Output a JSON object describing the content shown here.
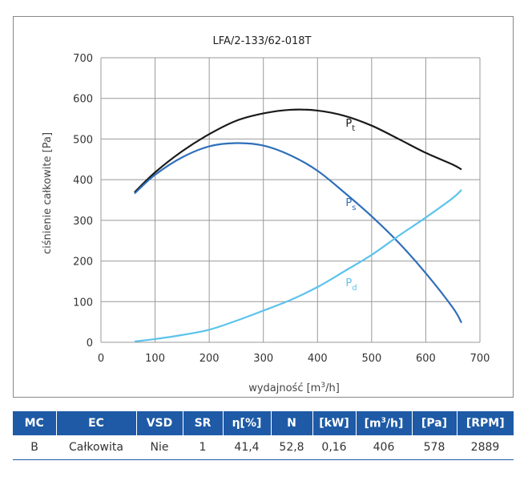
{
  "chart_data": {
    "type": "line",
    "title": "LFA/2-133/62-018T",
    "xlabel": "wydajność [m³/h]",
    "ylabel": "ciśnienie całkowite [Pa]",
    "xlim": [
      0,
      700
    ],
    "ylim": [
      0,
      700
    ],
    "xticks": [
      "0",
      "100",
      "200",
      "300",
      "400",
      "500",
      "600",
      "700"
    ],
    "yticks": [
      "0",
      "100",
      "200",
      "300",
      "400",
      "500",
      "600",
      "700"
    ],
    "grid": true,
    "series": [
      {
        "name": "Pt",
        "label_main": "P",
        "label_sub": "t",
        "label_at": [
          452,
          530
        ],
        "color": "#1a1a1a",
        "x": [
          62,
          100,
          150,
          200,
          250,
          300,
          350,
          400,
          450,
          500,
          550,
          600,
          650,
          666
        ],
        "y": [
          369,
          418,
          470,
          512,
          545,
          563,
          572,
          570,
          557,
          533,
          500,
          466,
          437,
          425
        ]
      },
      {
        "name": "Ps",
        "label_main": "P",
        "label_sub": "s",
        "label_at": [
          452,
          335
        ],
        "color": "#2f6fba",
        "x": [
          62,
          100,
          150,
          200,
          250,
          300,
          350,
          400,
          450,
          500,
          550,
          600,
          650,
          666
        ],
        "y": [
          366,
          412,
          455,
          482,
          490,
          484,
          460,
          422,
          368,
          310,
          245,
          170,
          85,
          48
        ]
      },
      {
        "name": "Pd",
        "label_main": "P",
        "label_sub": "d",
        "label_at": [
          452,
          138
        ],
        "color": "#5cc3ec",
        "x": [
          62,
          100,
          150,
          200,
          250,
          300,
          350,
          400,
          450,
          500,
          550,
          600,
          650,
          666
        ],
        "y": [
          2,
          8,
          18,
          31,
          53,
          78,
          104,
          136,
          175,
          215,
          262,
          307,
          355,
          375
        ]
      }
    ]
  },
  "table": {
    "headers": [
      {
        "main": "MC",
        "sup": "",
        "tail": ""
      },
      {
        "main": "EC",
        "sup": "",
        "tail": ""
      },
      {
        "main": "VSD",
        "sup": "",
        "tail": ""
      },
      {
        "main": "SR",
        "sup": "",
        "tail": ""
      },
      {
        "main": "η[%]",
        "sup": "",
        "tail": ""
      },
      {
        "main": "N",
        "sup": "",
        "tail": ""
      },
      {
        "main": "[kW]",
        "sup": "",
        "tail": ""
      },
      {
        "main": "[m",
        "sup": "3",
        "tail": "/h]"
      },
      {
        "main": "[Pa]",
        "sup": "",
        "tail": ""
      },
      {
        "main": "[RPM]",
        "sup": "",
        "tail": ""
      }
    ],
    "row": [
      "B",
      "Całkowita",
      "Nie",
      "1",
      "41,4",
      "52,8",
      "0,16",
      "406",
      "578",
      "2889"
    ]
  }
}
